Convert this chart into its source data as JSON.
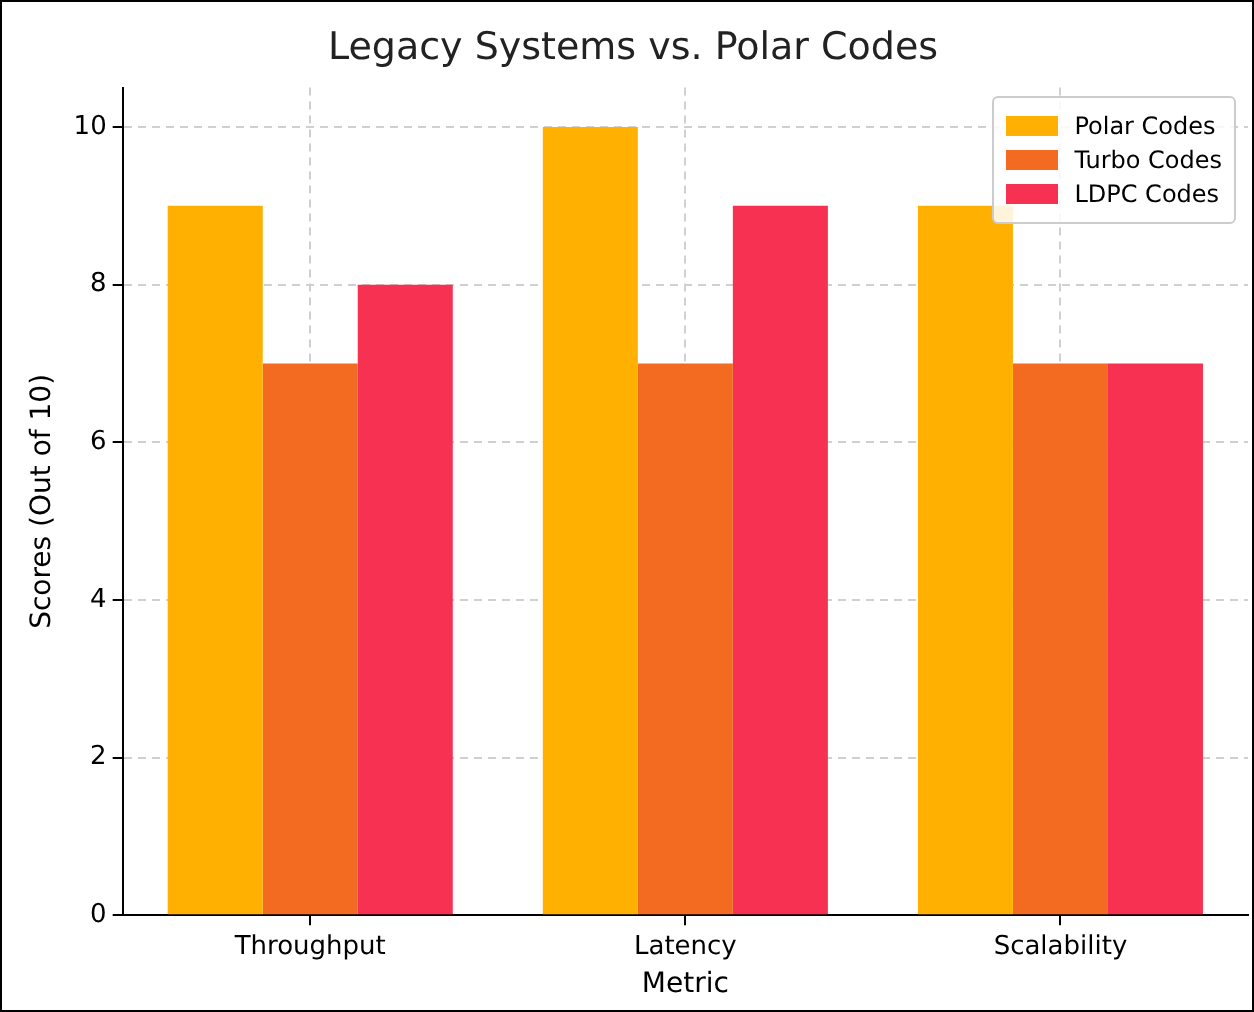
{
  "chart_data": {
    "type": "bar",
    "title": "Legacy Systems vs. Polar Codes",
    "xlabel": "Metric",
    "ylabel": "Scores (Out of 10)",
    "categories": [
      "Throughput",
      "Latency",
      "Scalability"
    ],
    "series": [
      {
        "name": "Polar Codes",
        "color": "#ffb000",
        "values": [
          9,
          10,
          9
        ]
      },
      {
        "name": "Turbo Codes",
        "color": "#f26b21",
        "values": [
          7,
          7,
          7
        ]
      },
      {
        "name": "LDPC Codes",
        "color": "#f73152",
        "values": [
          8,
          9,
          7
        ]
      }
    ],
    "ylim": [
      0,
      10.5
    ],
    "yticks": [
      0,
      2,
      4,
      6,
      8,
      10
    ],
    "grid": true,
    "legend": "top right"
  }
}
